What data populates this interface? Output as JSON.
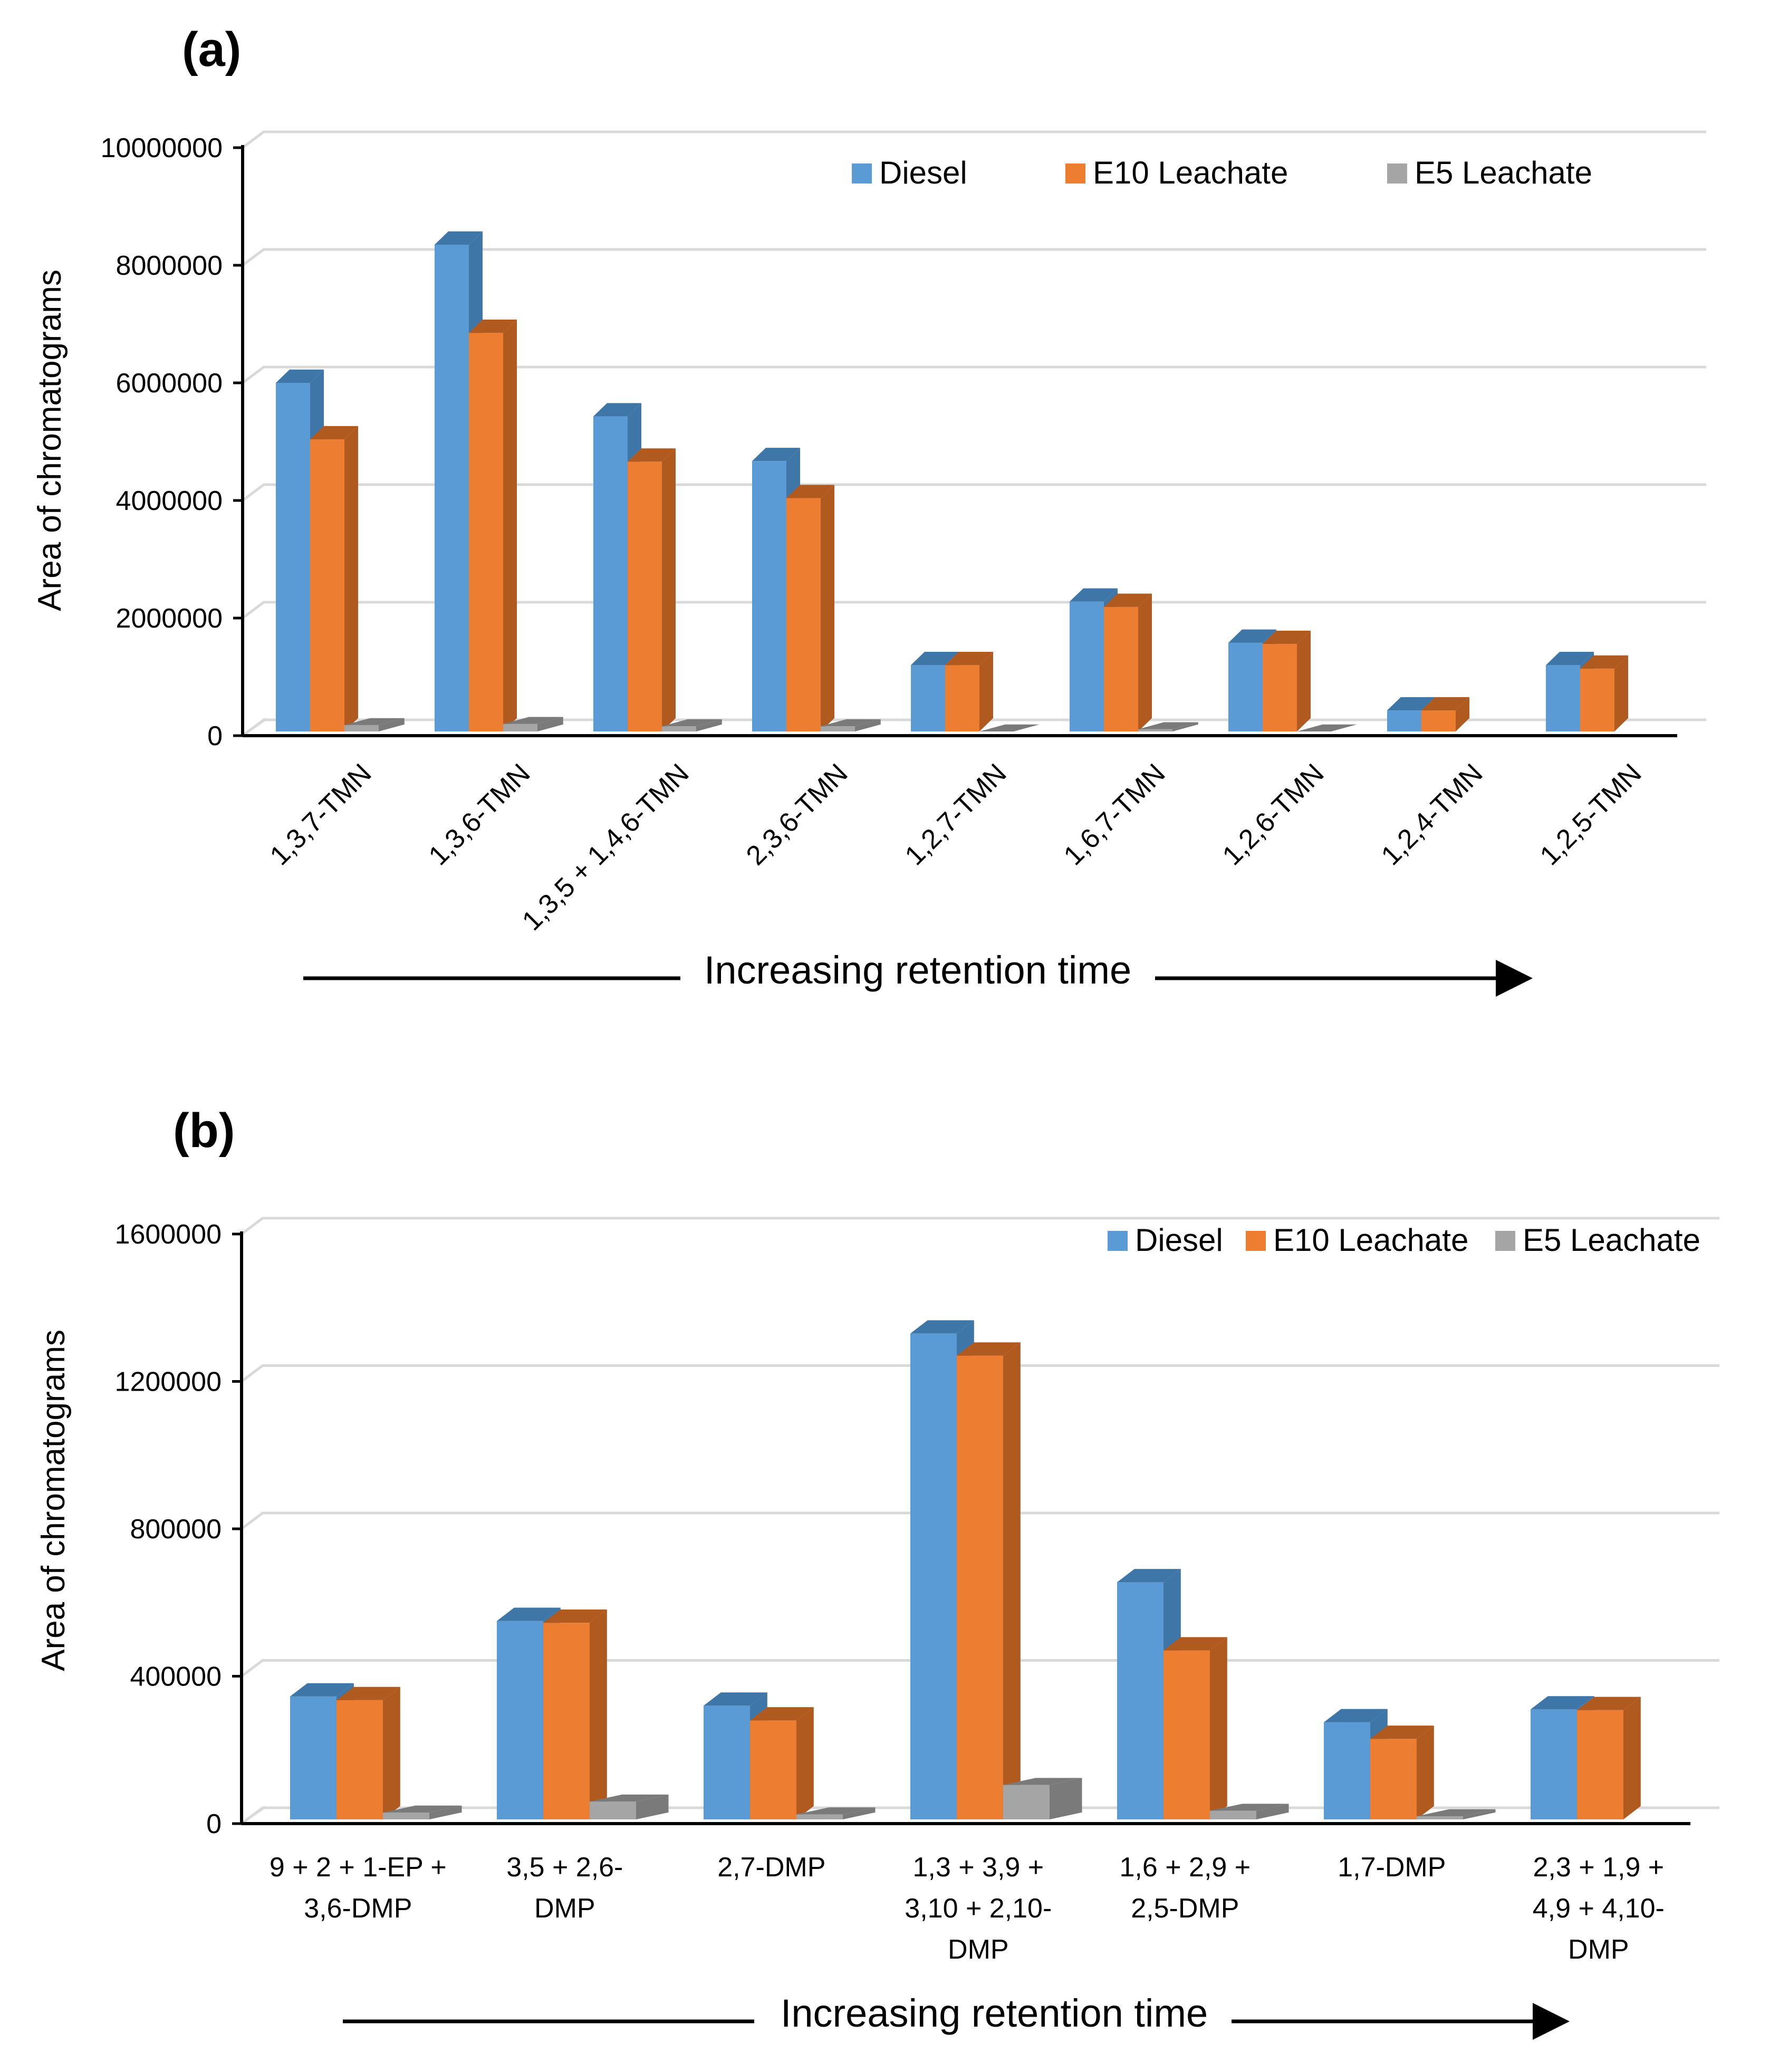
{
  "colors": {
    "Diesel": {
      "front": "#5b9bd5",
      "side": "#3f76a8",
      "top": "#3f76a8"
    },
    "E10 Leachate": {
      "front": "#ed7d31",
      "side": "#b05a20",
      "top": "#b05a20"
    },
    "E5 Leachate": {
      "front": "#a5a5a5",
      "side": "#7a7a7a",
      "top": "#7a7a7a"
    }
  },
  "chart_data": [
    {
      "panel": "(a)",
      "type": "bar",
      "ylabel": "Area of chromatograms",
      "xlabel": "Increasing retention time",
      "ylim": [
        0,
        10000000
      ],
      "yticks": [
        "0",
        "2000000",
        "4000000",
        "6000000",
        "8000000",
        "10000000"
      ],
      "legend": [
        "Diesel",
        "E10 Leachate",
        "E5 Leachate"
      ],
      "legend_position": "top-right",
      "categories": [
        "1,3,7-TMN",
        "1,3,6-TMN",
        "1,3,5 + 1,4,6-TMN",
        "2,3,6-TMN",
        "1,2,7-TMN",
        "1,6,7-TMN",
        "1,2,6-TMN",
        "1,2,4-TMN",
        "1,2,5-TMN"
      ],
      "series": [
        {
          "name": "Diesel",
          "values": [
            6000000,
            8350000,
            5430000,
            4670000,
            1200000,
            2280000,
            1580000,
            430000,
            1200000
          ]
        },
        {
          "name": "E10 Leachate",
          "values": [
            5040000,
            6850000,
            4660000,
            4040000,
            1200000,
            2190000,
            1560000,
            430000,
            1140000
          ]
        },
        {
          "name": "E5 Leachate",
          "values": [
            180000,
            200000,
            160000,
            160000,
            30000,
            110000,
            50000,
            0,
            0
          ]
        }
      ]
    },
    {
      "panel": "(b)",
      "type": "bar",
      "ylabel": "Area of chromatograms",
      "xlabel": "Increasing retention time",
      "ylim": [
        0,
        1600000
      ],
      "yticks": [
        "0",
        "400000",
        "800000",
        "1200000",
        "1600000"
      ],
      "legend": [
        "Diesel",
        "E10 Leachate",
        "E5 Leachate"
      ],
      "legend_position": "top-right",
      "categories": [
        [
          "9 + 2 + 1-EP +",
          "3,6-DMP"
        ],
        [
          "3,5 + 2,6-",
          "DMP"
        ],
        [
          "2,7-DMP"
        ],
        [
          "1,3 + 3,9 +",
          "3,10 + 2,10-",
          "DMP"
        ],
        [
          "1,6 + 2,9 +",
          "2,5-DMP"
        ],
        [
          "1,7-DMP"
        ],
        [
          "2,3 + 1,9 +",
          "4,9 + 4,10-",
          "DMP"
        ]
      ],
      "series": [
        {
          "name": "Diesel",
          "values": [
            345000,
            550000,
            320000,
            1330000,
            655000,
            275000,
            310000
          ]
        },
        {
          "name": "E10 Leachate",
          "values": [
            335000,
            545000,
            280000,
            1270000,
            470000,
            230000,
            308000
          ]
        },
        {
          "name": "E5 Leachate",
          "values": [
            30000,
            60000,
            25000,
            105000,
            35000,
            20000,
            0
          ]
        }
      ]
    }
  ]
}
